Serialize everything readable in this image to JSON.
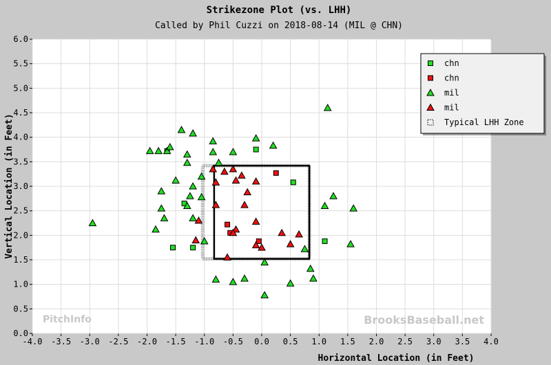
{
  "chart_data": {
    "type": "scatter",
    "title": "Strikezone Plot (vs. LHH)",
    "subtitle": "Called by Phil Cuzzi on 2018-08-14 (MIL @ CHN)",
    "xlabel": "Horizontal Location (in Feet)",
    "ylabel": "Vertical Location (in Feet)",
    "xlim": [
      -4.0,
      4.0
    ],
    "ylim": [
      0.0,
      6.0
    ],
    "x_ticks": [
      "-4.0",
      "-3.5",
      "-3.0",
      "-2.5",
      "-2.0",
      "-1.5",
      "-1.0",
      "-0.5",
      "0.0",
      "0.5",
      "1.0",
      "1.5",
      "2.0",
      "2.5",
      "3.0",
      "3.5",
      "4.0"
    ],
    "y_ticks": [
      "0.0",
      "0.5",
      "1.0",
      "1.5",
      "2.0",
      "2.5",
      "3.0",
      "3.5",
      "4.0",
      "4.5",
      "5.0",
      "5.5",
      "6.0"
    ],
    "grid": true,
    "legend_position": "top-right",
    "watermarks": {
      "left": "PitchInfo",
      "right": "BrooksBaseball.net"
    },
    "zones": [
      {
        "name": "called-zone",
        "x": [
          -0.83,
          0.83
        ],
        "y": [
          1.52,
          3.42
        ]
      },
      {
        "name": "Typical LHH Zone",
        "x": [
          -1.03,
          0.83
        ],
        "y": [
          1.52,
          3.42
        ]
      }
    ],
    "series": [
      {
        "name": "chn",
        "marker": "square",
        "color": "#22dd22",
        "points": [
          [
            -1.65,
            3.72
          ],
          [
            -1.35,
            2.65
          ],
          [
            -1.55,
            1.75
          ],
          [
            -1.2,
            1.75
          ],
          [
            -0.1,
            3.75
          ],
          [
            0.55,
            3.08
          ],
          [
            1.1,
            1.88
          ]
        ]
      },
      {
        "name": "chn",
        "marker": "square",
        "color": "#ee1111",
        "points": [
          [
            0.25,
            3.27
          ],
          [
            -0.05,
            1.88
          ],
          [
            -0.6,
            2.22
          ],
          [
            -0.55,
            2.05
          ]
        ]
      },
      {
        "name": "mil",
        "marker": "triangle",
        "color": "#22dd22",
        "points": [
          [
            -2.95,
            2.25
          ],
          [
            -1.95,
            3.72
          ],
          [
            -1.8,
            3.72
          ],
          [
            -1.65,
            3.72
          ],
          [
            -1.6,
            3.8
          ],
          [
            -1.4,
            4.15
          ],
          [
            -1.2,
            4.08
          ],
          [
            -1.3,
            3.65
          ],
          [
            -1.3,
            3.48
          ],
          [
            -1.5,
            3.12
          ],
          [
            -1.75,
            2.9
          ],
          [
            -1.75,
            2.55
          ],
          [
            -1.7,
            2.35
          ],
          [
            -1.85,
            2.12
          ],
          [
            -1.3,
            2.6
          ],
          [
            -1.25,
            2.8
          ],
          [
            -1.2,
            3.0
          ],
          [
            -1.05,
            3.2
          ],
          [
            -1.05,
            2.78
          ],
          [
            -1.2,
            2.35
          ],
          [
            -1.0,
            1.88
          ],
          [
            -0.85,
            3.92
          ],
          [
            -0.85,
            3.7
          ],
          [
            -0.75,
            3.48
          ],
          [
            -0.5,
            3.7
          ],
          [
            -0.1,
            3.98
          ],
          [
            0.2,
            3.83
          ],
          [
            1.15,
            4.6
          ],
          [
            1.25,
            2.8
          ],
          [
            1.1,
            2.6
          ],
          [
            1.6,
            2.55
          ],
          [
            1.55,
            1.82
          ],
          [
            0.75,
            1.72
          ],
          [
            0.85,
            1.32
          ],
          [
            0.9,
            1.12
          ],
          [
            0.5,
            1.02
          ],
          [
            0.05,
            1.45
          ],
          [
            0.05,
            0.78
          ],
          [
            -0.3,
            1.12
          ],
          [
            -0.5,
            1.05
          ],
          [
            -0.8,
            1.1
          ]
        ]
      },
      {
        "name": "mil",
        "marker": "triangle",
        "color": "#ee1111",
        "points": [
          [
            -0.85,
            3.35
          ],
          [
            -0.65,
            3.3
          ],
          [
            -0.5,
            3.35
          ],
          [
            -0.45,
            3.12
          ],
          [
            -0.35,
            3.22
          ],
          [
            -0.1,
            3.1
          ],
          [
            -0.8,
            3.08
          ],
          [
            -0.25,
            2.88
          ],
          [
            -0.3,
            2.62
          ],
          [
            -0.8,
            2.62
          ],
          [
            -0.45,
            2.12
          ],
          [
            -0.5,
            2.05
          ],
          [
            -0.1,
            2.28
          ],
          [
            0.35,
            2.05
          ],
          [
            0.65,
            2.02
          ],
          [
            -1.1,
            2.3
          ],
          [
            -1.15,
            1.9
          ],
          [
            -0.1,
            1.8
          ],
          [
            0.0,
            1.75
          ],
          [
            0.5,
            1.82
          ],
          [
            -0.6,
            1.55
          ]
        ]
      }
    ],
    "legend": [
      "chn",
      "chn",
      "mil",
      "mil",
      "Typical LHH Zone"
    ]
  }
}
